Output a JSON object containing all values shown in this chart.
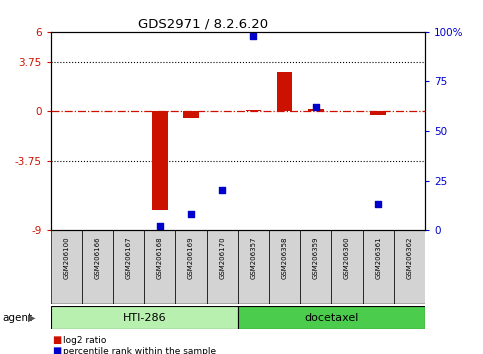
{
  "title": "GDS2971 / 8.2.6.20",
  "samples": [
    "GSM206100",
    "GSM206166",
    "GSM206167",
    "GSM206168",
    "GSM206169",
    "GSM206170",
    "GSM206357",
    "GSM206358",
    "GSM206359",
    "GSM206360",
    "GSM206361",
    "GSM206362"
  ],
  "log2_ratio": [
    0.0,
    0.0,
    0.0,
    -7.5,
    -0.5,
    0.0,
    0.1,
    3.0,
    0.2,
    0.0,
    -0.3,
    0.0
  ],
  "percentile_rank": [
    null,
    null,
    null,
    2,
    8,
    20,
    98,
    null,
    62,
    null,
    13,
    null
  ],
  "left_ylim": [
    -9,
    6
  ],
  "right_ylim": [
    0,
    100
  ],
  "left_yticks": [
    -9,
    -3.75,
    0,
    3.75,
    6
  ],
  "right_yticks": [
    0,
    25,
    50,
    75,
    100
  ],
  "dotted_lines": [
    3.75,
    -3.75
  ],
  "agent_groups": [
    {
      "label": "HTI-286",
      "start": 0,
      "end": 5,
      "color": "#b8f0b0"
    },
    {
      "label": "docetaxel",
      "start": 6,
      "end": 11,
      "color": "#4ccc4c"
    }
  ],
  "bar_color": "#cc1100",
  "scatter_color": "#0000cc",
  "legend_items": [
    {
      "color": "#cc1100",
      "label": "log2 ratio"
    },
    {
      "color": "#0000cc",
      "label": "percentile rank within the sample"
    }
  ],
  "agent_label": "agent",
  "plot_bg_color": "#ffffff"
}
